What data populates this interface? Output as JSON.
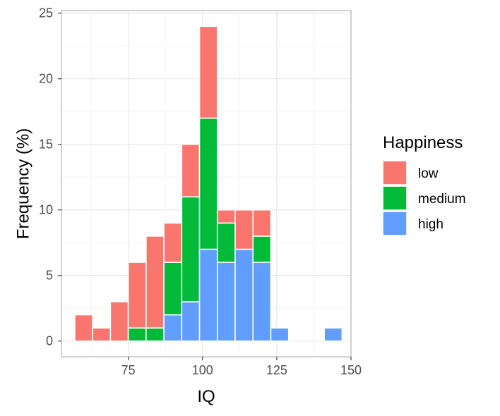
{
  "chart_data": {
    "type": "bar",
    "stacked": true,
    "title": "",
    "xlabel": "IQ",
    "ylabel": "Frequency (%)",
    "xlim": [
      52.5,
      150
    ],
    "ylim": [
      -1.2,
      25.2
    ],
    "x_ticks": [
      75,
      100,
      125,
      150
    ],
    "y_ticks": [
      0,
      5,
      10,
      15,
      20,
      25
    ],
    "grid": true,
    "bin_width": 6,
    "bin_starts": [
      57,
      63,
      69,
      75,
      81,
      87,
      93,
      99,
      105,
      111,
      117,
      123,
      129,
      135,
      141
    ],
    "legend": {
      "title": "Happiness",
      "position": "right"
    },
    "series": [
      {
        "name": "high",
        "color": "#619CFF",
        "values": [
          0,
          0,
          0,
          0,
          0,
          2,
          3,
          7,
          6,
          7,
          6,
          1,
          0,
          0,
          1
        ]
      },
      {
        "name": "medium",
        "color": "#00BA38",
        "values": [
          0,
          0,
          0,
          1,
          1,
          4,
          8,
          10,
          3,
          0,
          2,
          0,
          0,
          0,
          0
        ]
      },
      {
        "name": "low",
        "color": "#F8766D",
        "values": [
          2,
          1,
          3,
          5,
          7,
          3,
          4,
          7,
          1,
          3,
          2,
          0,
          0,
          0,
          0
        ]
      }
    ],
    "legend_order": [
      "low",
      "medium",
      "high"
    ]
  }
}
